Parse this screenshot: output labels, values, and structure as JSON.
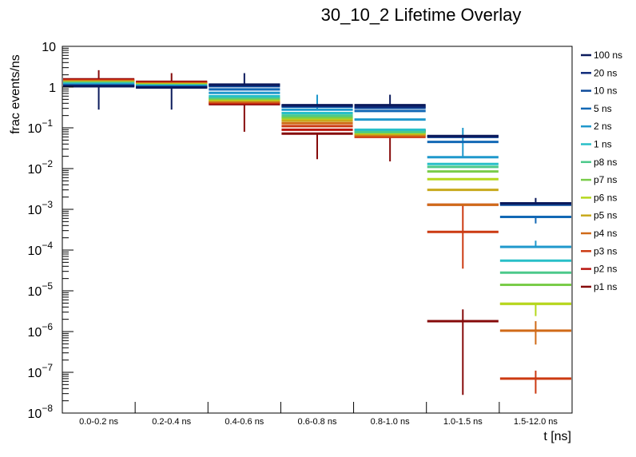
{
  "chart_data": {
    "type": "bar",
    "title": "30_10_2 Lifetime Overlay",
    "xlabel": "t [ns]",
    "ylabel": "frac events/ns",
    "yscale": "log",
    "ylim": [
      1e-08,
      10
    ],
    "categories": [
      "0.0-0.2 ns",
      "0.2-0.4 ns",
      "0.4-0.6 ns",
      "0.6-0.8 ns",
      "0.8-1.0 ns",
      "1.0-1.5 ns",
      "1.5-12.0 ns"
    ],
    "y_tick_labels": [
      {
        "base": "10",
        "exp": ""
      },
      {
        "base": "1",
        "exp": ""
      },
      {
        "base": "10",
        "exp": "−1"
      },
      {
        "base": "10",
        "exp": "−2"
      },
      {
        "base": "10",
        "exp": "−3"
      },
      {
        "base": "10",
        "exp": "−4"
      },
      {
        "base": "10",
        "exp": "−5"
      },
      {
        "base": "10",
        "exp": "−6"
      },
      {
        "base": "10",
        "exp": "−7"
      },
      {
        "base": "10",
        "exp": "−8"
      }
    ],
    "legend_position": "right",
    "series": [
      {
        "name": "100 ns",
        "color": "#0b1a5c",
        "values": [
          1.05,
          0.98,
          1.15,
          0.36,
          0.36,
          0.063,
          0.0014
        ],
        "err_lo": [
          0.28,
          0.28,
          null,
          null,
          null,
          null,
          null
        ],
        "err_hi": [
          null,
          null,
          2.2,
          null,
          0.65,
          null,
          0.0019
        ]
      },
      {
        "name": "20 ns",
        "color": "#0e2a7a",
        "values": [
          1.05,
          0.98,
          1.12,
          0.35,
          0.33,
          0.062,
          0.0014
        ],
        "err_lo": [
          null,
          null,
          null,
          null,
          null,
          null,
          null
        ],
        "err_hi": [
          null,
          null,
          null,
          null,
          null,
          null,
          null
        ]
      },
      {
        "name": "10 ns",
        "color": "#0d4a9a",
        "values": [
          1.08,
          1.0,
          1.05,
          0.34,
          0.31,
          0.06,
          0.0013
        ],
        "err_lo": [
          null,
          null,
          null,
          null,
          null,
          null,
          null
        ],
        "err_hi": [
          null,
          null,
          null,
          null,
          null,
          null,
          null
        ]
      },
      {
        "name": "5 ns",
        "color": "#1268b5",
        "values": [
          1.1,
          1.02,
          0.88,
          0.33,
          0.26,
          0.045,
          0.00065
        ],
        "err_lo": [
          null,
          null,
          null,
          null,
          null,
          null,
          0.00045
        ],
        "err_hi": [
          null,
          null,
          null,
          null,
          null,
          null,
          null
        ]
      },
      {
        "name": "2 ns",
        "color": "#1f98cc",
        "values": [
          1.15,
          1.05,
          0.72,
          0.28,
          0.16,
          0.019,
          0.00012
        ],
        "err_lo": [
          null,
          null,
          null,
          null,
          null,
          null,
          null
        ],
        "err_hi": [
          null,
          null,
          null,
          0.65,
          null,
          0.1,
          0.00017
        ]
      },
      {
        "name": "1 ns",
        "color": "#28bfc8",
        "values": [
          1.2,
          1.08,
          0.6,
          0.23,
          0.09,
          0.013,
          5.5e-05
        ],
        "err_lo": [
          null,
          null,
          null,
          null,
          null,
          null,
          null
        ],
        "err_hi": [
          null,
          null,
          null,
          null,
          null,
          null,
          null
        ]
      },
      {
        "name": "p8 ns",
        "color": "#4cc98a",
        "values": [
          1.25,
          1.1,
          0.55,
          0.2,
          0.08,
          0.011,
          2.8e-05
        ],
        "err_lo": [
          null,
          null,
          null,
          null,
          null,
          null,
          null
        ],
        "err_hi": [
          null,
          null,
          null,
          null,
          null,
          null,
          null
        ]
      },
      {
        "name": "p7 ns",
        "color": "#7acc4a",
        "values": [
          1.28,
          1.12,
          0.52,
          0.18,
          0.078,
          0.0085,
          1.4e-05
        ],
        "err_lo": [
          null,
          null,
          null,
          null,
          null,
          null,
          null
        ],
        "err_hi": [
          null,
          null,
          null,
          null,
          null,
          null,
          null
        ]
      },
      {
        "name": "p6 ns",
        "color": "#b5d81c",
        "values": [
          1.3,
          1.15,
          0.5,
          0.17,
          0.075,
          0.0055,
          4.8e-06
        ],
        "err_lo": [
          null,
          null,
          null,
          null,
          null,
          null,
          2.4e-06
        ],
        "err_hi": [
          null,
          null,
          null,
          null,
          null,
          null,
          null
        ]
      },
      {
        "name": "p5 ns",
        "color": "#c8a91c",
        "values": [
          1.35,
          1.18,
          0.47,
          0.15,
          0.07,
          0.003,
          4.8e-06
        ],
        "err_lo": [
          null,
          null,
          null,
          null,
          null,
          null,
          null
        ],
        "err_hi": [
          null,
          null,
          null,
          null,
          null,
          null,
          null
        ]
      },
      {
        "name": "p4 ns",
        "color": "#d06a18",
        "values": [
          1.4,
          1.22,
          0.44,
          0.13,
          0.065,
          0.0013,
          1.05e-06
        ],
        "err_lo": [
          null,
          null,
          null,
          null,
          null,
          null,
          4.8e-07
        ],
        "err_hi": [
          null,
          null,
          null,
          null,
          null,
          null,
          1.8e-06
        ]
      },
      {
        "name": "p3 ns",
        "color": "#cc3a12",
        "values": [
          1.45,
          1.26,
          0.42,
          0.11,
          0.06,
          0.00028,
          7e-08
        ],
        "err_lo": [
          null,
          null,
          null,
          null,
          null,
          3.5e-05,
          3e-08
        ],
        "err_hi": [
          null,
          null,
          null,
          null,
          null,
          0.0013,
          1.1e-07
        ]
      },
      {
        "name": "p2 ns",
        "color": "#b8140e",
        "values": [
          1.5,
          1.3,
          0.4,
          0.09,
          0.085,
          0.0013,
          null
        ],
        "err_lo": [
          null,
          null,
          null,
          null,
          null,
          null,
          null
        ],
        "err_hi": [
          null,
          null,
          null,
          null,
          null,
          null,
          null
        ]
      },
      {
        "name": "p1 ns",
        "color": "#860a0a",
        "values": [
          1.55,
          1.35,
          0.38,
          0.072,
          0.085,
          1.8e-06,
          null
        ],
        "err_lo": [
          null,
          null,
          0.08,
          0.017,
          0.015,
          2.8e-08,
          null
        ],
        "err_hi": [
          2.6,
          2.2,
          null,
          null,
          null,
          3.5e-06,
          null
        ]
      }
    ]
  }
}
